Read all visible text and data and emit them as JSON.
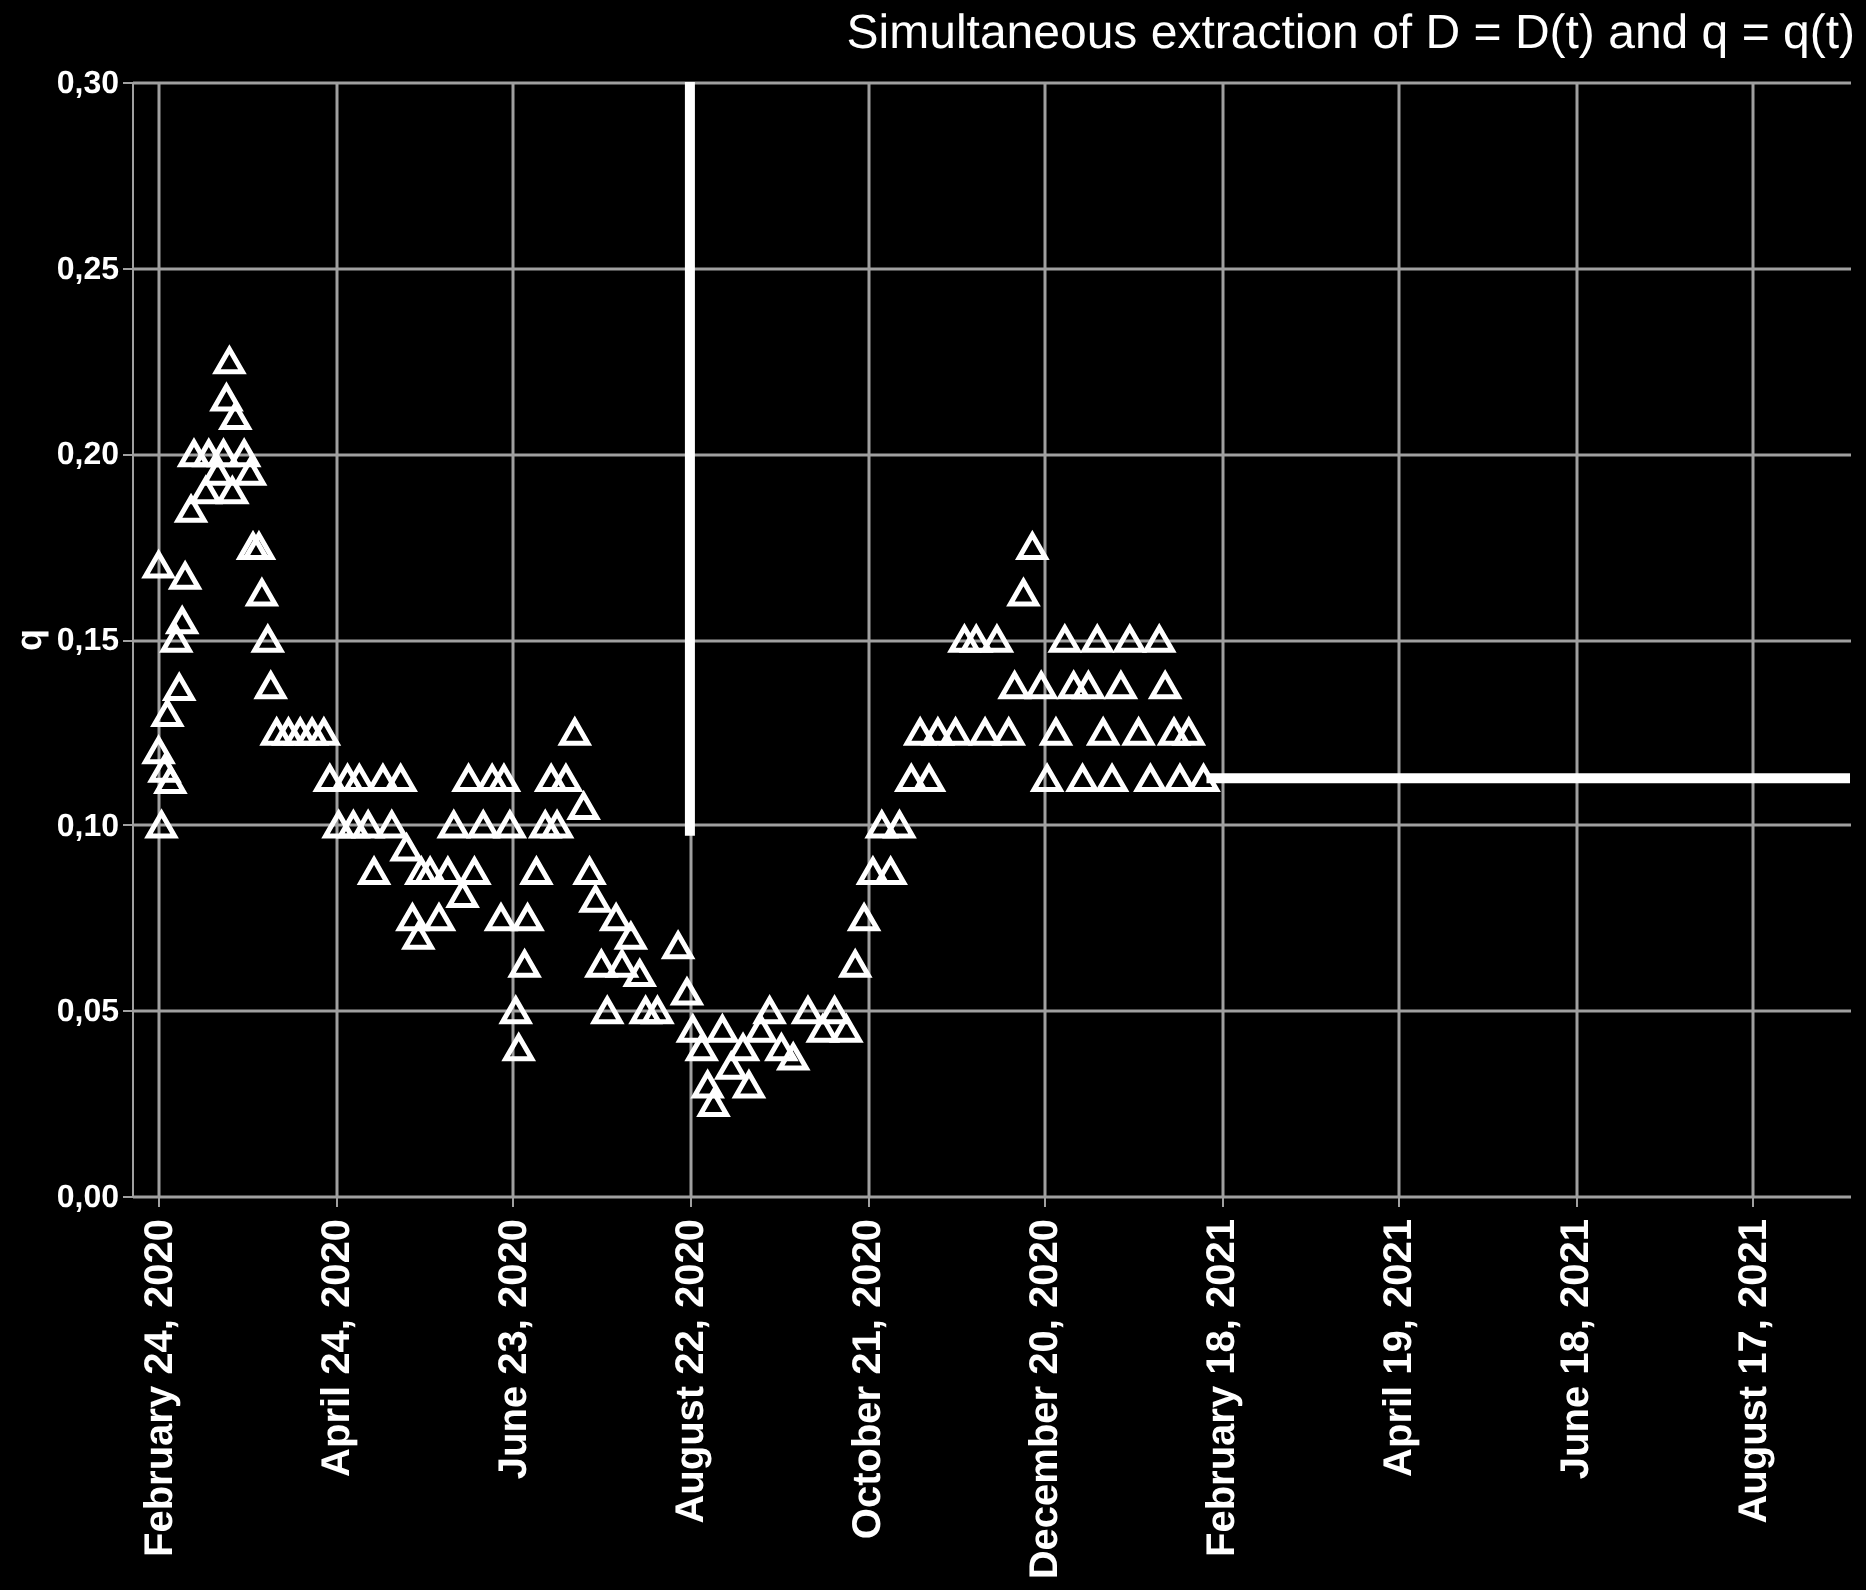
{
  "chart_data": {
    "type": "scatter",
    "title": "Simultaneous extraction of D = D(t) and q = q(t)",
    "ylabel": "q",
    "xlim": [
      "2020-02-15",
      "2021-09-19"
    ],
    "ylim": [
      0,
      0.3
    ],
    "xticks": [
      {
        "value": "2020-02-24",
        "label": "February 24, 2020"
      },
      {
        "value": "2020-04-24",
        "label": "April 24, 2020"
      },
      {
        "value": "2020-06-23",
        "label": "June 23, 2020"
      },
      {
        "value": "2020-08-22",
        "label": "August 22, 2020"
      },
      {
        "value": "2020-10-21",
        "label": "October 21, 2020"
      },
      {
        "value": "2020-12-20",
        "label": "December 20, 2020"
      },
      {
        "value": "2021-02-18",
        "label": "February 18, 2021"
      },
      {
        "value": "2021-04-19",
        "label": "April 19, 2021"
      },
      {
        "value": "2021-06-18",
        "label": "June 18, 2021"
      },
      {
        "value": "2021-08-17",
        "label": "August 17, 2021"
      }
    ],
    "yticks": [
      {
        "value": 0,
        "label": "0,00"
      },
      {
        "value": 0.05,
        "label": "0,05"
      },
      {
        "value": 0.1,
        "label": "0,10"
      },
      {
        "value": 0.15,
        "label": "0,15"
      },
      {
        "value": 0.2,
        "label": "0,20"
      },
      {
        "value": 0.25,
        "label": "0,25"
      },
      {
        "value": 0.3,
        "label": "0,30"
      }
    ],
    "grid": true,
    "legend": false,
    "marker": "triangle",
    "series": [
      {
        "color": "#ffffff",
        "x": [
          "2020-02-24",
          "2020-02-24",
          "2020-02-25",
          "2020-02-26",
          "2020-02-27",
          "2020-02-28",
          "2020-03-01",
          "2020-03-02",
          "2020-03-03",
          "2020-03-04",
          "2020-03-06",
          "2020-03-07",
          "2020-03-11",
          "2020-03-12",
          "2020-03-15",
          "2020-03-17",
          "2020-03-18",
          "2020-03-19",
          "2020-03-20",
          "2020-03-21",
          "2020-03-24",
          "2020-03-26",
          "2020-03-27",
          "2020-03-29",
          "2020-03-30",
          "2020-04-01",
          "2020-04-02",
          "2020-04-04",
          "2020-04-08",
          "2020-04-12",
          "2020-04-16",
          "2020-04-20",
          "2020-04-22",
          "2020-04-25",
          "2020-04-28",
          "2020-04-30",
          "2020-05-02",
          "2020-05-05",
          "2020-05-07",
          "2020-05-10",
          "2020-05-13",
          "2020-05-16",
          "2020-05-18",
          "2020-05-20",
          "2020-05-22",
          "2020-05-23",
          "2020-05-26",
          "2020-05-29",
          "2020-06-01",
          "2020-06-03",
          "2020-06-06",
          "2020-06-08",
          "2020-06-10",
          "2020-06-13",
          "2020-06-16",
          "2020-06-19",
          "2020-06-20",
          "2020-06-22",
          "2020-06-24",
          "2020-06-25",
          "2020-06-27",
          "2020-06-28",
          "2020-07-01",
          "2020-07-04",
          "2020-07-06",
          "2020-07-08",
          "2020-07-11",
          "2020-07-14",
          "2020-07-17",
          "2020-07-19",
          "2020-07-21",
          "2020-07-23",
          "2020-07-25",
          "2020-07-28",
          "2020-07-30",
          "2020-08-02",
          "2020-08-05",
          "2020-08-07",
          "2020-08-11",
          "2020-08-18",
          "2020-08-21",
          "2020-08-23",
          "2020-08-26",
          "2020-08-28",
          "2020-08-30",
          "2020-09-02",
          "2020-09-05",
          "2020-09-09",
          "2020-09-11",
          "2020-09-15",
          "2020-09-18",
          "2020-09-22",
          "2020-09-26",
          "2020-10-01",
          "2020-10-06",
          "2020-10-10",
          "2020-10-14",
          "2020-10-17",
          "2020-10-20",
          "2020-10-23",
          "2020-10-26",
          "2020-10-29",
          "2020-11-01",
          "2020-11-05",
          "2020-11-08",
          "2020-11-11",
          "2020-11-14",
          "2020-11-20",
          "2020-11-23",
          "2020-11-27",
          "2020-11-30",
          "2020-12-04",
          "2020-12-08",
          "2020-12-10",
          "2020-12-13",
          "2020-12-16",
          "2020-12-19",
          "2020-12-21",
          "2020-12-24",
          "2020-12-27",
          "2020-12-30",
          "2021-01-02",
          "2021-01-04",
          "2021-01-07",
          "2021-01-09",
          "2021-01-12",
          "2021-01-15",
          "2021-01-18",
          "2021-01-21",
          "2021-01-25",
          "2021-01-28",
          "2021-01-30",
          "2021-02-02",
          "2021-02-04",
          "2021-02-07",
          "2021-02-12"
        ],
        "values": [
          0.17,
          0.12,
          0.1,
          0.115,
          0.13,
          0.112,
          0.15,
          0.137,
          0.155,
          0.167,
          0.185,
          0.2,
          0.19,
          0.2,
          0.195,
          0.2,
          0.215,
          0.225,
          0.19,
          0.21,
          0.2,
          0.195,
          0.175,
          0.175,
          0.1625,
          0.15,
          0.1375,
          0.125,
          0.125,
          0.125,
          0.125,
          0.125,
          0.1125,
          0.1,
          0.1125,
          0.1,
          0.1125,
          0.1,
          0.0875,
          0.1125,
          0.1,
          0.1125,
          0.0938,
          0.075,
          0.07,
          0.0875,
          0.0875,
          0.075,
          0.0875,
          0.1,
          0.0813,
          0.1125,
          0.0875,
          0.1,
          0.1125,
          0.075,
          0.1125,
          0.1,
          0.05,
          0.04,
          0.0625,
          0.075,
          0.0875,
          0.1,
          0.1125,
          0.1,
          0.1125,
          0.125,
          0.105,
          0.0875,
          0.08,
          0.0625,
          0.05,
          0.075,
          0.0625,
          0.07,
          0.06,
          0.05,
          0.05,
          0.0675,
          0.055,
          0.045,
          0.04,
          0.03,
          0.025,
          0.045,
          0.035,
          0.04,
          0.03,
          0.045,
          0.05,
          0.04,
          0.0375,
          0.05,
          0.045,
          0.05,
          0.045,
          0.0625,
          0.075,
          0.0875,
          0.1,
          0.0875,
          0.1,
          0.1125,
          0.125,
          0.1125,
          0.125,
          0.125,
          0.15,
          0.15,
          0.125,
          0.15,
          0.125,
          0.1375,
          0.1625,
          0.175,
          0.1375,
          0.1125,
          0.125,
          0.15,
          0.1375,
          0.1125,
          0.1375,
          0.15,
          0.125,
          0.1125,
          0.1375,
          0.15,
          0.125,
          0.1125,
          0.15,
          0.1375,
          0.125,
          0.1125,
          0.125,
          0.1125
        ]
      },
      {
        "type": "line",
        "marker": "none",
        "color": "#ffffff",
        "x": [
          "2021-02-13",
          "2021-09-19"
        ],
        "values": [
          0.1125,
          0.1125
        ]
      },
      {
        "type": "line",
        "marker": "none",
        "color": "#ffffff",
        "x": [
          "2020-08-22",
          "2020-08-22"
        ],
        "values": [
          0.3,
          0.097
        ]
      }
    ]
  }
}
